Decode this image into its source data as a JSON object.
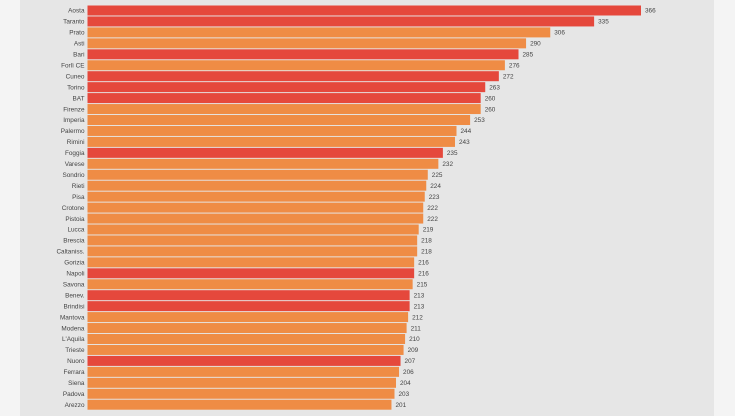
{
  "chart_data": {
    "type": "bar",
    "orientation": "horizontal",
    "categories": [
      "Aosta",
      "Taranto",
      "Prato",
      "Asti",
      "Bari",
      "Forlì CE",
      "Cuneo",
      "Torino",
      "BAT",
      "Firenze",
      "Imperia",
      "Palermo",
      "Rimini",
      "Foggia",
      "Varese",
      "Sondrio",
      "Rieti",
      "Pisa",
      "Crotone",
      "Pistoia",
      "Lucca",
      "Brescia",
      "Caltaniss.",
      "Gorizia",
      "Napoli",
      "Savona",
      "Benev.",
      "Brindisi",
      "Mantova",
      "Modena",
      "L'Aquila",
      "Trieste",
      "Nuoro",
      "Ferrara",
      "Siena",
      "Padova",
      "Arezzo"
    ],
    "values": [
      366,
      335,
      306,
      290,
      285,
      276,
      272,
      263,
      260,
      260,
      253,
      244,
      243,
      235,
      232,
      225,
      224,
      223,
      222,
      222,
      219,
      218,
      218,
      216,
      216,
      215,
      213,
      213,
      212,
      211,
      210,
      209,
      207,
      206,
      204,
      203,
      201
    ],
    "highlight": [
      true,
      true,
      false,
      false,
      true,
      false,
      true,
      true,
      true,
      false,
      false,
      false,
      false,
      true,
      false,
      false,
      false,
      false,
      false,
      false,
      false,
      false,
      false,
      false,
      true,
      false,
      true,
      true,
      false,
      false,
      false,
      false,
      true,
      false,
      false,
      false,
      false
    ],
    "colors": {
      "highlight": "#e5483c",
      "normal": "#ef8c45",
      "panel": "#e6e6e6",
      "page": "#f4f4f4"
    },
    "xlim": [
      0,
      366
    ],
    "grid": false,
    "legend": "none",
    "title": "",
    "xlabel": "",
    "ylabel": ""
  }
}
